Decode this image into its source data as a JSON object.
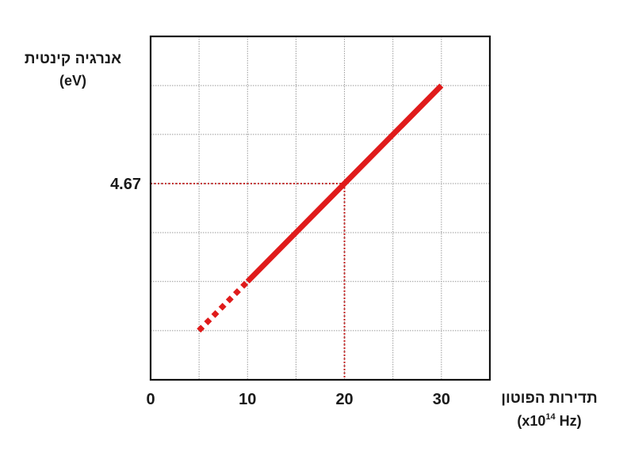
{
  "chart_data": {
    "type": "line",
    "title": "",
    "ylabel": "אנרגיה קינטית",
    "yunit": "(eV)",
    "xlabel": "תדירות הפוטון",
    "xunit_prefix": "(x10",
    "xunit_exp": "14",
    "xunit_suffix": " Hz)",
    "xlim": [
      0,
      35
    ],
    "ylim": [
      -1.56,
      9.34
    ],
    "x_ticks": [
      0,
      10,
      20,
      30
    ],
    "x_tick_labels": [
      "0",
      "10",
      "20",
      "30"
    ],
    "y_tick_labels": [
      {
        "value": 4.67,
        "label": "4.67"
      }
    ],
    "grid": true,
    "grid_y": [
      -1.56,
      0,
      1.56,
      3.11,
      4.67,
      6.23,
      7.78,
      9.34
    ],
    "series": [
      {
        "points": [
          [
            10,
            1.56
          ],
          [
            30,
            7.78
          ]
        ],
        "style": "solid",
        "color": "#e01b1b"
      },
      {
        "points": [
          [
            4.97,
            0
          ],
          [
            10,
            1.56
          ]
        ],
        "style": "dotted",
        "color": "#e01b1b"
      }
    ],
    "reference_lines": [
      {
        "x": 20,
        "y": 4.67,
        "style": "dotted",
        "color": "#c42020"
      }
    ]
  }
}
